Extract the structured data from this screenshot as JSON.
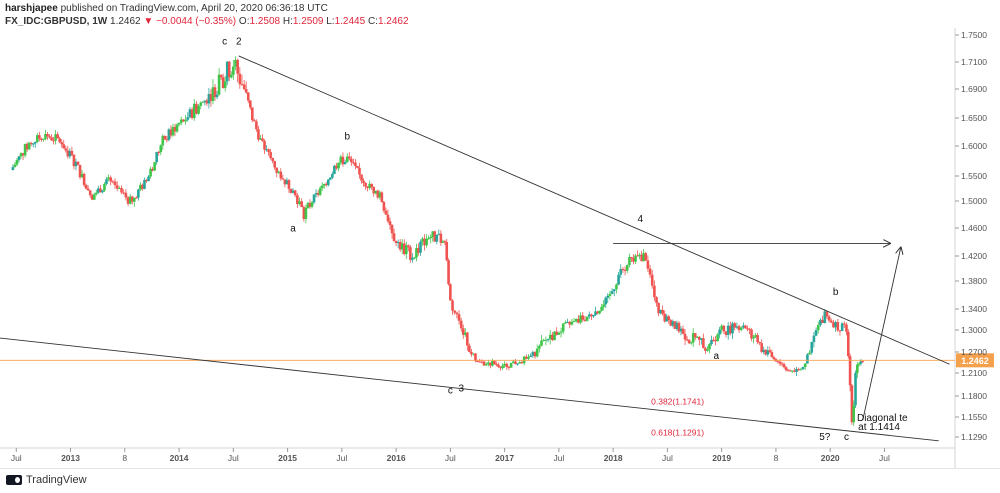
{
  "header": {
    "author": "harshjapee",
    "published": "published on TradingView.com, April 20, 2020 06:36:18 UTC",
    "symbol": "FX_IDC:GBPUSD, 1W",
    "last": "1.2462",
    "change_arrow": "▼",
    "change": "−0.0044 (−0.35%)",
    "o_label": "O:",
    "o_val": "1.2508",
    "h_label": "H:",
    "h_val": "1.2509",
    "l_label": "L:",
    "l_val": "1.2445",
    "c_label": "C:",
    "c_val": "1.2462"
  },
  "footer": {
    "logo_text": "TradingView",
    "logo_icon": "tradingview-logo-icon"
  },
  "colors": {
    "up": "#26a69a",
    "up_bright": "#3fc54a",
    "down": "#ef5350",
    "line": "#333333",
    "price_line": "#f5a04c",
    "price_tag": "#f5a04c",
    "fib": "#e0263b"
  },
  "chart_data": {
    "type": "candlestick",
    "symbol": "FX_IDC:GBPUSD",
    "timeframe": "1W",
    "x_ticks": [
      "Jul",
      "2013",
      "8",
      "2014",
      "Jul",
      "2015",
      "Jul",
      "2016",
      "Jul",
      "2017",
      "Jul",
      "2018",
      "Jul",
      "2019",
      "8",
      "2020",
      "Jul"
    ],
    "y_ticks": [
      1.75,
      1.71,
      1.69,
      1.65,
      1.6,
      1.55,
      1.5,
      1.46,
      1.42,
      1.38,
      1.34,
      1.3,
      1.27,
      1.21,
      1.18,
      1.155,
      1.129
    ],
    "y_tick_labels": [
      "1.7500",
      "1.7100",
      "1.6900",
      "1.6500",
      "1.6000",
      "1.5500",
      "1.5000",
      "1.4600",
      "1.4200",
      "1.3800",
      "1.3400",
      "1.3000",
      "1.2700",
      "1.2100",
      "1.1800",
      "1.1550",
      "1.1290"
    ],
    "current_price": 1.2462,
    "current_price_label": "1.2462",
    "price_path": [
      [
        "2012.45",
        1.56
      ],
      [
        "2012.6",
        1.6
      ],
      [
        "2012.75",
        1.62
      ],
      [
        "2012.9",
        1.61
      ],
      [
        "2013.05",
        1.57
      ],
      [
        "2013.2",
        1.51
      ],
      [
        "2013.35",
        1.54
      ],
      [
        "2013.55",
        1.5
      ],
      [
        "2013.7",
        1.54
      ],
      [
        "2013.85",
        1.61
      ],
      [
        "2014.0",
        1.64
      ],
      [
        "2014.2",
        1.67
      ],
      [
        "2014.35",
        1.69
      ],
      [
        "2014.5",
        1.71
      ],
      [
        "2014.6",
        1.69
      ],
      [
        "2014.75",
        1.61
      ],
      [
        "2014.9",
        1.56
      ],
      [
        "2015.05",
        1.52
      ],
      [
        "2015.15",
        1.48
      ],
      [
        "2015.3",
        1.52
      ],
      [
        "2015.45",
        1.57
      ],
      [
        "2015.55",
        1.58
      ],
      [
        "2015.7",
        1.54
      ],
      [
        "2015.85",
        1.51
      ],
      [
        "2016.0",
        1.44
      ],
      [
        "2016.15",
        1.42
      ],
      [
        "2016.3",
        1.45
      ],
      [
        "2016.45",
        1.44
      ],
      [
        "2016.5",
        1.35
      ],
      [
        "2016.6",
        1.31
      ],
      [
        "2016.75",
        1.24
      ],
      [
        "2016.85",
        1.24
      ],
      [
        "2017.0",
        1.23
      ],
      [
        "2017.2",
        1.25
      ],
      [
        "2017.4",
        1.29
      ],
      [
        "2017.6",
        1.31
      ],
      [
        "2017.8",
        1.33
      ],
      [
        "2017.95",
        1.35
      ],
      [
        "2018.05",
        1.39
      ],
      [
        "2018.15",
        1.41
      ],
      [
        "2018.3",
        1.42
      ],
      [
        "2018.4",
        1.34
      ],
      [
        "2018.55",
        1.31
      ],
      [
        "2018.7",
        1.29
      ],
      [
        "2018.85",
        1.28
      ],
      [
        "2019.0",
        1.3
      ],
      [
        "2019.2",
        1.31
      ],
      [
        "2019.35",
        1.28
      ],
      [
        "2019.5",
        1.25
      ],
      [
        "2019.65",
        1.21
      ],
      [
        "2019.75",
        1.23
      ],
      [
        "2019.85",
        1.29
      ],
      [
        "2019.95",
        1.33
      ],
      [
        "2020.05",
        1.31
      ],
      [
        "2020.15",
        1.3
      ],
      [
        "2020.2",
        1.15
      ],
      [
        "2020.25",
        1.23
      ],
      [
        "2020.3",
        1.25
      ]
    ],
    "annotations": [
      {
        "text": "c",
        "x": "2014.42",
        "y": 1.736
      },
      {
        "text": "2",
        "x": "2014.55",
        "y": 1.736
      },
      {
        "text": "a",
        "x": "2015.05",
        "y": 1.455
      },
      {
        "text": "b",
        "x": "2015.55",
        "y": 1.612
      },
      {
        "text": "c",
        "x": "2016.5",
        "y": 1.183
      },
      {
        "text": "3",
        "x": "2016.6",
        "y": 1.186
      },
      {
        "text": "4",
        "x": "2018.25",
        "y": 1.469
      },
      {
        "text": "a",
        "x": "2018.95",
        "y": 1.25
      },
      {
        "text": "b",
        "x": "2020.05",
        "y": 1.36
      },
      {
        "text": "5?",
        "x": "2019.95",
        "y": 1.125
      },
      {
        "text": "c",
        "x": "2020.15",
        "y": 1.125
      },
      {
        "text": "Diagonal te",
        "x": "2020.48",
        "y": 1.15
      },
      {
        "text": "at 1.1414",
        "x": "2020.45",
        "y": 1.138
      }
    ],
    "fib_labels": [
      {
        "text": "0.382(1.1741)",
        "x": "2018.35",
        "y": 1.17
      },
      {
        "text": "0.618(1.1291)",
        "x": "2018.35",
        "y": 1.131
      }
    ],
    "trendlines": [
      {
        "from": [
          "2014.55",
          1.719
        ],
        "to": [
          "2021.1",
          1.235
        ]
      },
      {
        "from": [
          "2012.35",
          1.289
        ],
        "to": [
          "2021.0",
          1.124
        ]
      },
      {
        "from": [
          "2018.0",
          1.438
        ],
        "to": [
          "2020.55",
          1.438
        ],
        "arrow": true
      },
      {
        "from": [
          "2020.3",
          1.151
        ],
        "to": [
          "2020.65",
          1.432
        ],
        "arrow": true
      }
    ]
  }
}
